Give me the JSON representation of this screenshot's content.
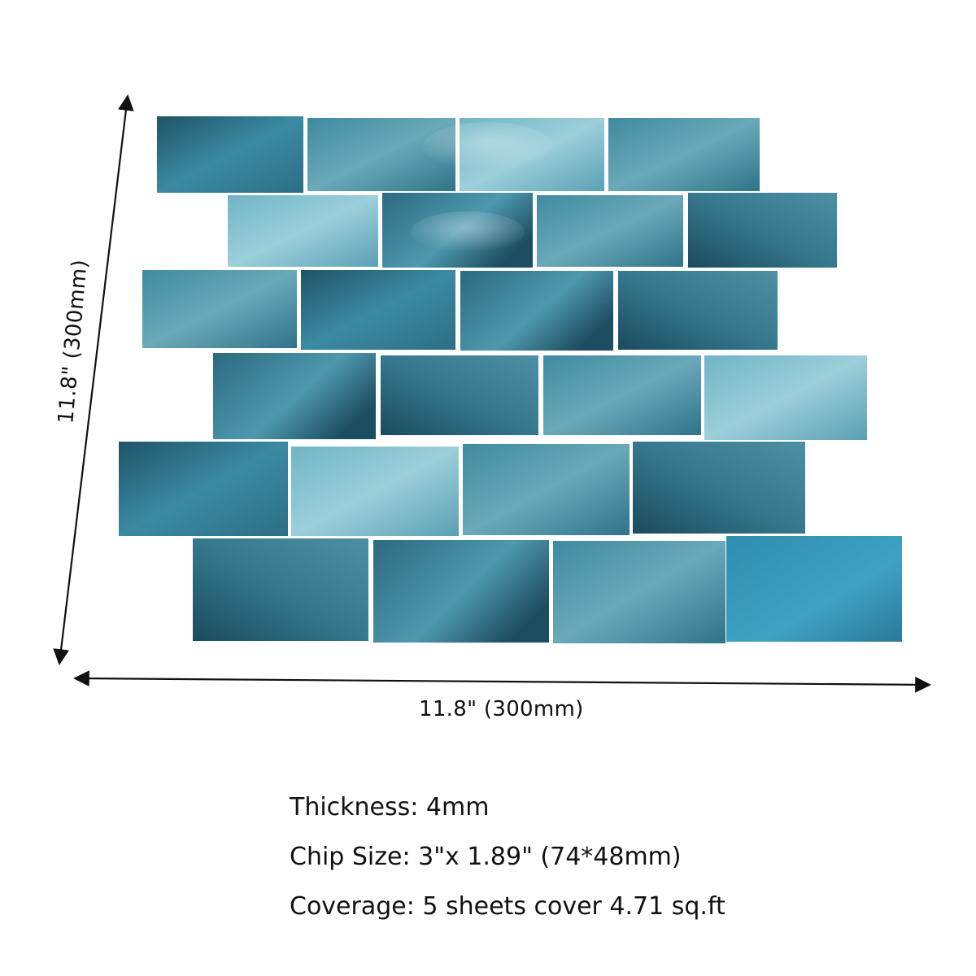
{
  "dimensions": {
    "height_label": "11.8\" (300mm)",
    "width_label": "11.8\" (300mm)"
  },
  "specs": [
    "Thickness: 4mm",
    "Chip Size: 3\"x 1.89\" (74*48mm)",
    "Coverage: 5 sheets cover 4.71 sq.ft"
  ],
  "colors": {
    "arrow": "#111111",
    "tile_palette": [
      "#2f6f85",
      "#3d8ea6",
      "#5aa3b8",
      "#7fbccb",
      "#9fcfd8",
      "#245a6e",
      "#4a94a8"
    ]
  }
}
